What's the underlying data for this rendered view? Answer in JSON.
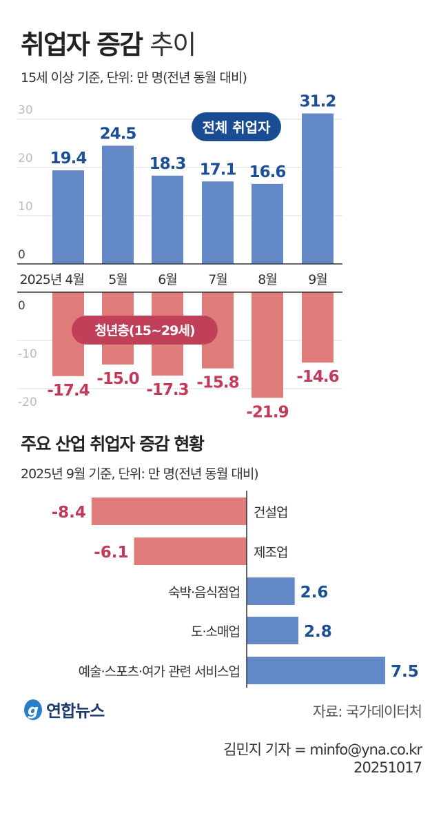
{
  "header": {
    "title_bold": "취업자 증감",
    "title_light": "추이",
    "subtitle": "15세 이상 기준, 단위: 만 명(전년 동월 대비)"
  },
  "colors": {
    "total_bar": "#6389c6",
    "total_label": "#1d4f96",
    "youth_bar": "#e07c7a",
    "youth_label": "#c23a5a"
  },
  "chart_data": [
    {
      "type": "bar",
      "categories": [
        "2025년 4월",
        "5월",
        "6월",
        "7월",
        "8월",
        "9월"
      ],
      "series": [
        {
          "name": "전체 취업자",
          "values": [
            19.4,
            24.5,
            18.3,
            17.1,
            16.6,
            31.2
          ]
        }
      ],
      "data_labels": [
        "19.4",
        "24.5",
        "18.3",
        "17.1",
        "16.6",
        "31.2"
      ],
      "yticks": [
        "0",
        "10",
        "20",
        "30"
      ],
      "ylim": [
        0,
        30
      ],
      "grid": true
    },
    {
      "type": "bar",
      "categories": [
        "2025년 4월",
        "5월",
        "6월",
        "7월",
        "8월",
        "9월"
      ],
      "series": [
        {
          "name": "청년층(15~29세)",
          "values": [
            -17.4,
            -15.0,
            -17.3,
            -15.8,
            -21.9,
            -14.6
          ]
        }
      ],
      "data_labels": [
        "-17.4",
        "-15.0",
        "-17.3",
        "-15.8",
        "-21.9",
        "-14.6"
      ],
      "yticks": [
        "0",
        "-10",
        "-20"
      ],
      "ylim": [
        -20,
        0
      ],
      "grid": true
    },
    {
      "type": "bar",
      "orientation": "horizontal",
      "title": "주요 산업 취업자 증감 현황",
      "subtitle": "2025년 9월 기준, 단위: 만 명(전년 동월 대비)",
      "categories": [
        "건설업",
        "제조업",
        "숙박·음식점업",
        "도·소매업",
        "예술·스포츠·여가 관련 서비스업"
      ],
      "values": [
        -8.4,
        -6.1,
        2.6,
        2.8,
        7.5
      ],
      "data_labels": [
        "-8.4",
        "-6.1",
        "2.6",
        "2.8",
        "7.5"
      ]
    }
  ],
  "footer": {
    "logo": "연합뉴스",
    "source": "자료: 국가데이터처",
    "credit": "김민지 기자 = minfo@yna.co.kr",
    "date": "20251017"
  }
}
